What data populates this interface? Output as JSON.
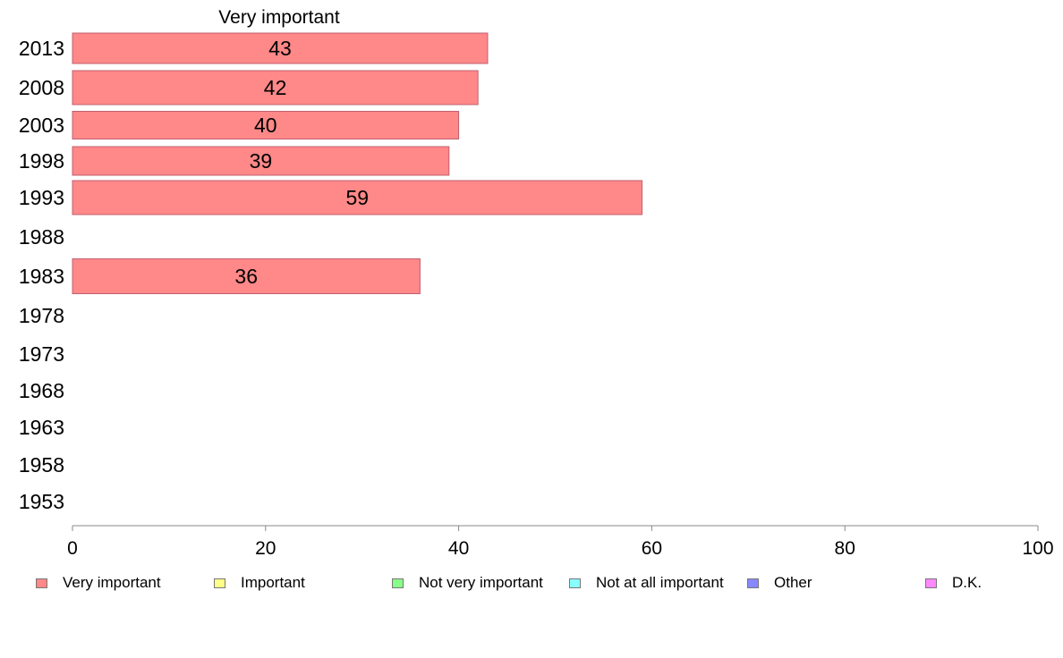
{
  "chart_data": {
    "type": "bar",
    "orientation": "horizontal",
    "title": "Very important",
    "categories": [
      "2013",
      "2008",
      "2003",
      "1998",
      "1993",
      "1988",
      "1983",
      "1978",
      "1973",
      "1968",
      "1963",
      "1958",
      "1953"
    ],
    "series": [
      {
        "name": "Very important",
        "values": [
          43,
          42,
          40,
          39,
          59,
          null,
          36,
          null,
          null,
          null,
          null,
          null,
          null
        ]
      }
    ],
    "data_labels": [
      "43",
      "42",
      "40",
      "39",
      "59",
      "",
      "36",
      "",
      "",
      "",
      "",
      "",
      ""
    ],
    "xlim": [
      0,
      100
    ],
    "xticks": [
      0,
      20,
      40,
      60,
      80,
      100
    ],
    "xtick_labels": [
      "0",
      "20",
      "40",
      "60",
      "80",
      "100"
    ],
    "grid": false,
    "legend_position": "bottom",
    "legend": [
      {
        "label": "Very important",
        "color": "#ff8888"
      },
      {
        "label": "Important",
        "color": "#ffff88"
      },
      {
        "label": "Not very important",
        "color": "#88ff88"
      },
      {
        "label": "Not at all important",
        "color": "#88ffff"
      },
      {
        "label": "Other",
        "color": "#8888ff"
      },
      {
        "label": "D.K.",
        "color": "#ff88ff"
      }
    ],
    "bar_color": "#ff8888",
    "bar_border_color": "#c06070",
    "axis_color": "#888888"
  }
}
